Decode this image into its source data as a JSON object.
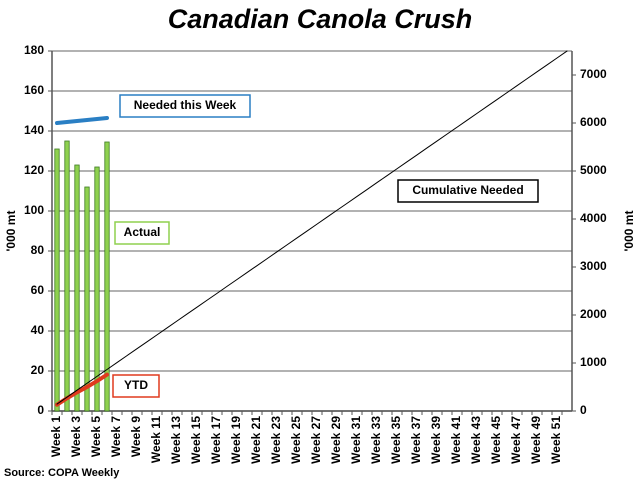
{
  "chart_data": {
    "type": "bar",
    "title": "Canadian Canola Crush",
    "ylabel": "'000 mt",
    "y2label": "'000 mt",
    "source": "Source: COPA Weekly",
    "categories": [
      "Week 1",
      null,
      "Week 3",
      null,
      "Week 5",
      null,
      "Week 7",
      null,
      "Week 9",
      null,
      "Week 11",
      null,
      "Week 13",
      null,
      "Week 15",
      null,
      "Week 17",
      null,
      "Week 19",
      null,
      "Week 21",
      null,
      "Week 23",
      null,
      "Week 25",
      null,
      "Week 27",
      null,
      "Week 29",
      null,
      "Week 31",
      null,
      "Week 33",
      null,
      "Week 35",
      null,
      "Week 37",
      null,
      "Week 39",
      null,
      "Week 41",
      null,
      "Week 43",
      null,
      "Week 45",
      null,
      "Week 47",
      null,
      "Week 49",
      null,
      "Week 51",
      null
    ],
    "ylim": [
      0,
      180
    ],
    "yticks": [
      0,
      20,
      40,
      60,
      80,
      100,
      120,
      140,
      160,
      180
    ],
    "y2lim": [
      0,
      7500
    ],
    "y2ticks": [
      0,
      1000,
      2000,
      3000,
      4000,
      5000,
      6000,
      7000
    ],
    "grid": true,
    "series": [
      {
        "name": "Actual",
        "type": "bar",
        "color": "#8fd14f",
        "values": [
          131,
          135,
          123,
          112,
          122,
          134.5,
          null,
          null,
          null,
          null,
          null,
          null,
          null,
          null,
          null,
          null,
          null,
          null,
          null,
          null,
          null,
          null,
          null,
          null,
          null,
          null,
          null,
          null,
          null,
          null,
          null,
          null,
          null,
          null,
          null,
          null,
          null,
          null,
          null,
          null,
          null,
          null,
          null,
          null,
          null,
          null,
          null,
          null,
          null,
          null,
          null,
          null
        ]
      },
      {
        "name": "Needed this Week",
        "type": "line",
        "color": "#2a7fc4",
        "values": [
          144,
          144.5,
          145,
          145.5,
          146,
          146.5,
          null,
          null,
          null,
          null,
          null,
          null,
          null,
          null,
          null,
          null,
          null,
          null,
          null,
          null,
          null,
          null,
          null,
          null,
          null,
          null,
          null,
          null,
          null,
          null,
          null,
          null,
          null,
          null,
          null,
          null,
          null,
          null,
          null,
          null,
          null,
          null,
          null,
          null,
          null,
          null,
          null,
          null,
          null,
          null,
          null,
          null
        ]
      },
      {
        "name": "YTD",
        "type": "line",
        "axis": "y2",
        "color": "#e03a1e",
        "values": [
          131,
          266,
          389,
          501,
          623,
          758,
          null,
          null,
          null,
          null,
          null,
          null,
          null,
          null,
          null,
          null,
          null,
          null,
          null,
          null,
          null,
          null,
          null,
          null,
          null,
          null,
          null,
          null,
          null,
          null,
          null,
          null,
          null,
          null,
          null,
          null,
          null,
          null,
          null,
          null,
          null,
          null,
          null,
          null,
          null,
          null,
          null,
          null,
          null,
          null,
          null,
          null
        ]
      },
      {
        "name": "Cumulative Needed",
        "type": "line",
        "axis": "y2",
        "color": "#000000",
        "values": [
          144,
          288,
          433,
          577,
          721,
          865,
          1009,
          1154,
          1298,
          1442,
          1586,
          1730,
          1875,
          2019,
          2163,
          2307,
          2451,
          2596,
          2740,
          2884,
          3028,
          3172,
          3317,
          3461,
          3605,
          3749,
          3893,
          4038,
          4182,
          4326,
          4470,
          4614,
          4759,
          4903,
          5047,
          5191,
          5335,
          5480,
          5624,
          5768,
          5912,
          6056,
          6201,
          6345,
          6489,
          6633,
          6777,
          6922,
          7066,
          7210,
          7354,
          7498
        ]
      }
    ]
  }
}
